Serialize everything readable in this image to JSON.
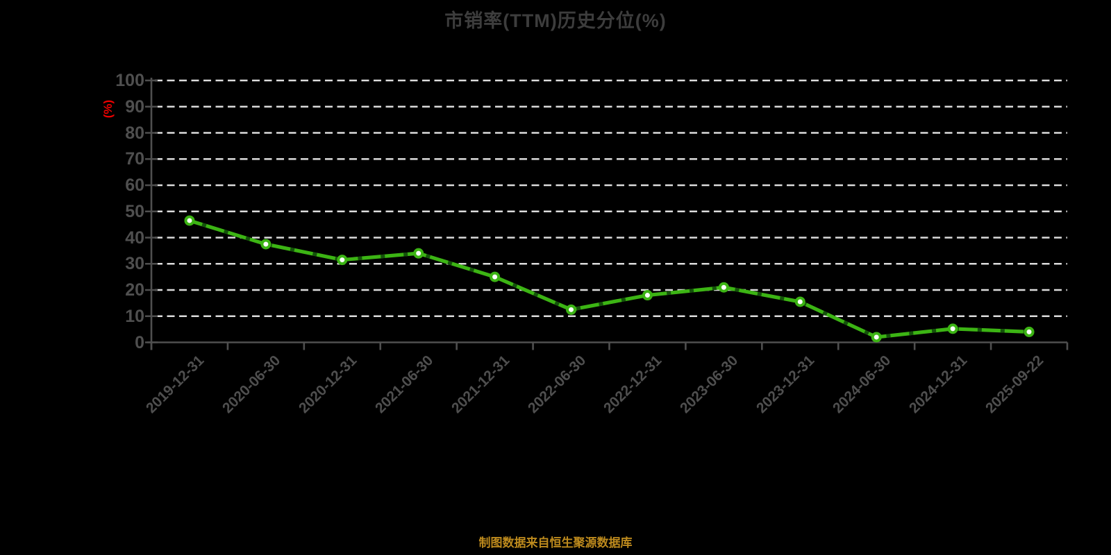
{
  "chart": {
    "title": "市销率(TTM)历史分位(%)",
    "y_unit": "(%)",
    "source_note": "制图数据来自恒生聚源数据库",
    "colors": {
      "background": "#000000",
      "title": "#3d3d3d",
      "unit_label": "#ee0000",
      "grid": "#dcdcdc",
      "axis": "#4f4f4f",
      "tick_label": "#4f4f4f",
      "line": "#3cb414",
      "line_dash_overlay": "#14520a",
      "marker_fill": "#ffffff",
      "source": "#bd8a1d"
    }
  },
  "chart_data": {
    "type": "line",
    "title": "市销率(TTM)历史分位(%)",
    "ylabel": "(%)",
    "xlabel": "",
    "categories": [
      "2019-12-31",
      "2020-06-30",
      "2020-12-31",
      "2021-06-30",
      "2021-12-31",
      "2022-06-30",
      "2022-12-31",
      "2023-06-30",
      "2023-12-31",
      "2024-06-30",
      "2024-12-31",
      "2025-09-22"
    ],
    "series": [
      {
        "name": "市销率(TTM)历史分位(%)",
        "values": [
          46.5,
          37.5,
          31.5,
          34,
          25,
          12.5,
          18,
          21,
          15.5,
          2,
          5.2,
          4
        ]
      }
    ],
    "ylim": [
      0,
      100
    ],
    "yticks": [
      0,
      10,
      20,
      30,
      40,
      50,
      60,
      70,
      80,
      90,
      100
    ],
    "grid": "dashed-horizontal",
    "legend": "none"
  }
}
